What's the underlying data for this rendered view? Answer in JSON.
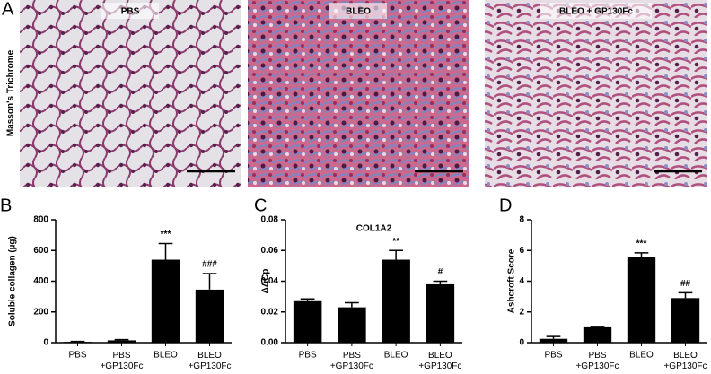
{
  "figure_a": {
    "panel": "A",
    "y_label": "Masson's Trichrome",
    "images": [
      {
        "label": "PBS"
      },
      {
        "label": "BLEO"
      },
      {
        "label": "BLEO + GP130Fc"
      }
    ]
  },
  "chart_data": [
    {
      "type": "bar",
      "panel": "B",
      "ylabel": "Soluble collagen (µg)",
      "categories": [
        "PBS",
        "PBS\n+GP130Fc",
        "BLEO",
        "BLEO\n+GP130Fc"
      ],
      "values": [
        5,
        15,
        540,
        345
      ],
      "errors": [
        3,
        5,
        105,
        105
      ],
      "annotations": [
        null,
        null,
        "***",
        "###"
      ],
      "color": "#000000",
      "ylim": [
        0,
        800
      ],
      "yticks": [
        0,
        200,
        400,
        600,
        800
      ]
    },
    {
      "type": "bar",
      "panel": "C",
      "title": "COL1A2",
      "ylabel": "ΔΔCp",
      "categories": [
        "PBS",
        "PBS\n+GP130Fc",
        "BLEO",
        "BLEO\n+GP130Fc"
      ],
      "values": [
        0.027,
        0.023,
        0.054,
        0.038
      ],
      "errors": [
        0.0015,
        0.003,
        0.006,
        0.002
      ],
      "annotations": [
        null,
        null,
        "**",
        "#"
      ],
      "color": "#000000",
      "ylim": [
        0,
        0.08
      ],
      "yticks": [
        {
          "value": 0,
          "label": "0.00"
        },
        0.02,
        0.04,
        0.06,
        0.08
      ]
    },
    {
      "type": "bar",
      "panel": "D",
      "ylabel": "Ashcroft Score",
      "categories": [
        "PBS",
        "PBS\n+GP130Fc",
        "BLEO",
        "BLEO\n+GP130Fc"
      ],
      "values": [
        0.25,
        1.0,
        5.55,
        2.9
      ],
      "errors": [
        0.15,
        0,
        0.3,
        0.35
      ],
      "annotations": [
        null,
        null,
        "***",
        "##"
      ],
      "color": "#000000",
      "ylim": [
        0,
        8
      ],
      "yticks": [
        0,
        2,
        4,
        6,
        8
      ]
    }
  ]
}
